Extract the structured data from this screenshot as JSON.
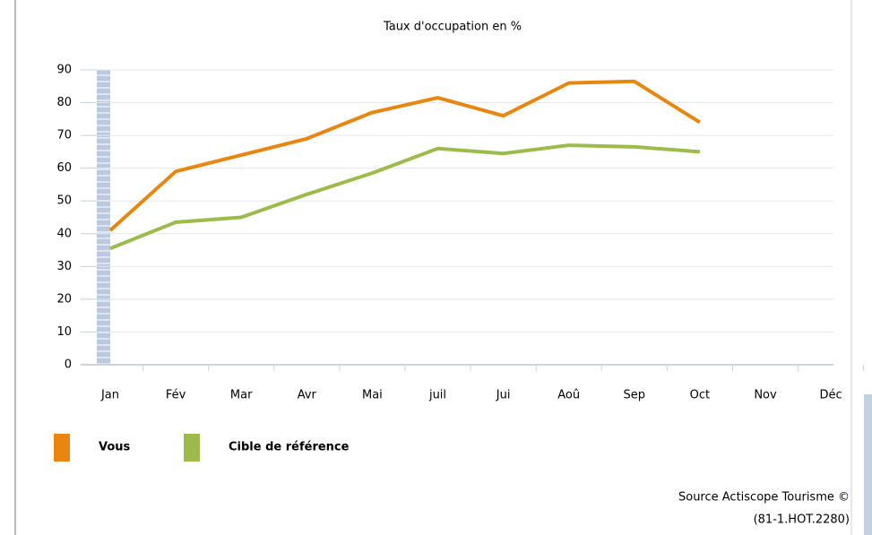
{
  "chart_data": {
    "type": "line",
    "title": "Taux d'occupation en %",
    "categories": [
      "Jan",
      "Fév",
      "Mar",
      "Avr",
      "Mai",
      "juil",
      "Jui",
      "Aoû",
      "Sep",
      "Oct",
      "Nov",
      "Déc"
    ],
    "series": [
      {
        "name": "Vous",
        "color": "#e8860f",
        "values": [
          41,
          59,
          64,
          69,
          77,
          81.5,
          76,
          86,
          86.5,
          74,
          null,
          null
        ]
      },
      {
        "name": "Cible de référence",
        "color": "#9dbb4a",
        "values": [
          35.5,
          43.5,
          45,
          52,
          58.5,
          66,
          64.5,
          67,
          66.5,
          65,
          null,
          null
        ]
      }
    ],
    "ylim": [
      0,
      90
    ],
    "yticks": [
      0,
      10,
      20,
      30,
      40,
      50,
      60,
      70,
      80,
      90
    ],
    "grid": true,
    "annotations": [
      "Source Actiscope Tourisme ©",
      "(81-1.HOT.2280)"
    ]
  }
}
